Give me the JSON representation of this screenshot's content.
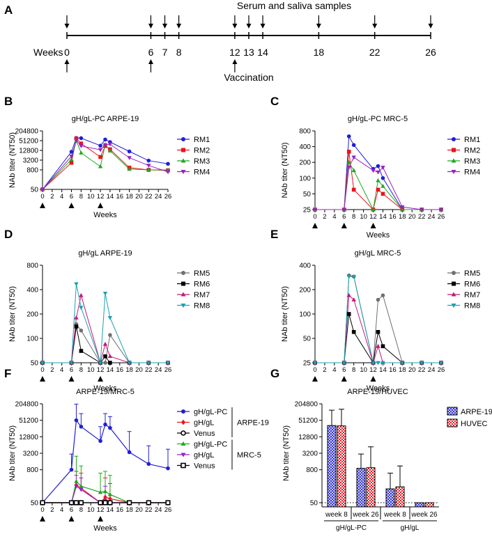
{
  "timeline": {
    "letter": "A",
    "top_label": "Serum and saliva samples",
    "weeks_label": "Weeks",
    "bottom_label": "Vaccination",
    "weeks": [
      0,
      6,
      7,
      8,
      12,
      13,
      14,
      18,
      22,
      26
    ],
    "sample_weeks": [
      0,
      6,
      7,
      8,
      12,
      13,
      14,
      18,
      22,
      26
    ],
    "vaccination_weeks": [
      0,
      6,
      12
    ]
  },
  "chart_data": [
    {
      "letter": "B",
      "type": "line",
      "title": "gH/gL-PC ARPE-19",
      "xlabel": "Weeks",
      "ylabel": "NAb titer (NT50)",
      "yscale": "log",
      "xlim": [
        0,
        26
      ],
      "xticks": [
        "0",
        "2",
        "4",
        "6",
        "8",
        "10",
        "12",
        "14",
        "16",
        "18",
        "20",
        "22",
        "24",
        "26"
      ],
      "ylim": [
        50,
        204800
      ],
      "yticks": [
        50,
        800,
        3200,
        12800,
        51200,
        204800
      ],
      "yticklabels": [
        "50",
        "800",
        "3200",
        "12800",
        "51200",
        "204800"
      ],
      "baseline": 50,
      "vaccination_weeks": [
        0,
        6,
        12
      ],
      "x": [
        0,
        6,
        7,
        8,
        12,
        13,
        14,
        18,
        22,
        26
      ],
      "series": [
        {
          "name": "RM1",
          "color": "#1f1fd6",
          "marker": "circle",
          "values": [
            50,
            10500,
            75000,
            73000,
            25000,
            60000,
            42000,
            11000,
            3000,
            1900
          ]
        },
        {
          "name": "RM2",
          "color": "#e8141e",
          "marker": "square",
          "values": [
            50,
            2200,
            70000,
            34000,
            5000,
            24000,
            15000,
            1100,
            800,
            750
          ]
        },
        {
          "name": "RM3",
          "color": "#1fa81f",
          "marker": "triangle",
          "values": [
            50,
            3500,
            50000,
            9000,
            1300,
            29000,
            12000,
            900,
            800,
            800
          ]
        },
        {
          "name": "RM4",
          "color": "#9b1fc6",
          "marker": "tri-down",
          "values": [
            50,
            5500,
            52000,
            24000,
            14000,
            28000,
            31000,
            4500,
            1500,
            600
          ]
        }
      ]
    },
    {
      "letter": "C",
      "type": "line",
      "title": "gH/gL-PC MRC-5",
      "xlabel": "Weeks",
      "ylabel": "NAb titer (NT50)",
      "yscale": "log",
      "xlim": [
        0,
        26
      ],
      "xticks": [
        "0",
        "2",
        "4",
        "6",
        "8",
        "10",
        "12",
        "14",
        "16",
        "18",
        "20",
        "22",
        "24",
        "26"
      ],
      "ylim": [
        25,
        800
      ],
      "yticks": [
        25,
        50,
        100,
        200,
        400,
        800
      ],
      "yticklabels": [
        "25",
        "50",
        "100",
        "200",
        "400",
        "800"
      ],
      "baseline": 25,
      "vaccination_weeks": [
        0,
        6,
        12
      ],
      "x": [
        0,
        6,
        7,
        8,
        12,
        13,
        14,
        18,
        22,
        26
      ],
      "series": [
        {
          "name": "RM1",
          "color": "#1f1fd6",
          "marker": "circle",
          "values": [
            25,
            25,
            630,
            430,
            150,
            170,
            100,
            25,
            25,
            25
          ]
        },
        {
          "name": "RM2",
          "color": "#e8141e",
          "marker": "square",
          "values": [
            25,
            25,
            320,
            60,
            25,
            60,
            50,
            25,
            25,
            25
          ]
        },
        {
          "name": "RM3",
          "color": "#1fa81f",
          "marker": "triangle",
          "values": [
            25,
            25,
            200,
            140,
            25,
            90,
            70,
            25,
            25,
            25
          ]
        },
        {
          "name": "RM4",
          "color": "#9b1fc6",
          "marker": "tri-down",
          "values": [
            25,
            25,
            160,
            250,
            140,
            130,
            160,
            28,
            25,
            25
          ]
        }
      ]
    },
    {
      "letter": "D",
      "type": "line",
      "title": "gH/gL ARPE-19",
      "xlabel": "Weeks",
      "ylabel": "NAb titer (NT50)",
      "yscale": "log",
      "xlim": [
        0,
        26
      ],
      "xticks": [
        "0",
        "2",
        "4",
        "6",
        "8",
        "10",
        "12",
        "14",
        "16",
        "18",
        "20",
        "22",
        "24",
        "26"
      ],
      "ylim": [
        50,
        800
      ],
      "yticks": [
        50,
        100,
        200,
        400,
        800
      ],
      "yticklabels": [
        "50",
        "100",
        "200",
        "400",
        "800"
      ],
      "baseline": 50,
      "vaccination_weeks": [
        0,
        6,
        12
      ],
      "x": [
        0,
        6,
        7,
        8,
        12,
        13,
        14,
        18,
        22,
        26
      ],
      "series": [
        {
          "name": "RM5",
          "color": "#707070",
          "marker": "circle",
          "values": [
            50,
            50,
            150,
            125,
            50,
            50,
            110,
            50,
            50,
            50
          ]
        },
        {
          "name": "RM6",
          "color": "#000000",
          "marker": "square",
          "values": [
            50,
            50,
            140,
            70,
            50,
            60,
            50,
            50,
            50,
            50
          ]
        },
        {
          "name": "RM7",
          "color": "#c2187a",
          "marker": "triangle",
          "values": [
            50,
            50,
            180,
            340,
            50,
            85,
            60,
            50,
            50,
            50
          ]
        },
        {
          "name": "RM8",
          "color": "#1aa0b0",
          "marker": "tri-down",
          "values": [
            50,
            50,
            470,
            240,
            50,
            360,
            180,
            50,
            50,
            50
          ]
        }
      ]
    },
    {
      "letter": "E",
      "type": "line",
      "title": "gH/gL MRC-5",
      "xlabel": "Weeks",
      "ylabel": "NAb titer (NT50)",
      "yscale": "log",
      "xlim": [
        0,
        26
      ],
      "xticks": [
        "0",
        "2",
        "4",
        "6",
        "8",
        "10",
        "12",
        "14",
        "16",
        "18",
        "20",
        "22",
        "24",
        "26"
      ],
      "ylim": [
        25,
        400
      ],
      "yticks": [
        25,
        50,
        100,
        200,
        400
      ],
      "yticklabels": [
        "25",
        "50",
        "100",
        "200",
        "400"
      ],
      "baseline": 25,
      "vaccination_weeks": [
        0,
        6,
        12
      ],
      "x": [
        0,
        6,
        7,
        8,
        12,
        13,
        14,
        18,
        22,
        26
      ],
      "series": [
        {
          "name": "RM5",
          "color": "#707070",
          "marker": "circle",
          "values": [
            25,
            25,
            300,
            290,
            25,
            150,
            170,
            25,
            25,
            25
          ]
        },
        {
          "name": "RM6",
          "color": "#000000",
          "marker": "square",
          "values": [
            25,
            25,
            100,
            60,
            25,
            60,
            40,
            25,
            25,
            25
          ]
        },
        {
          "name": "RM7",
          "color": "#c2187a",
          "marker": "triangle",
          "values": [
            25,
            25,
            170,
            150,
            25,
            40,
            25,
            25,
            25,
            25
          ]
        },
        {
          "name": "RM8",
          "color": "#1aa0b0",
          "marker": "tri-down",
          "values": [
            25,
            25,
            290,
            290,
            25,
            25,
            25,
            25,
            25,
            25
          ]
        }
      ]
    },
    {
      "letter": "F",
      "type": "line",
      "title": "ARPE-19/MRC-5",
      "xlabel": "Weeks",
      "ylabel": "NAb titer (NT50)",
      "yscale": "log",
      "xlim": [
        0,
        26
      ],
      "xticks": [
        "0",
        "2",
        "4",
        "6",
        "8",
        "10",
        "12",
        "14",
        "16",
        "18",
        "20",
        "22",
        "24",
        "26"
      ],
      "ylim": [
        50,
        204800
      ],
      "yticks": [
        50,
        800,
        3200,
        12800,
        51200,
        204800
      ],
      "yticklabels": [
        "50",
        "800",
        "3200",
        "12800",
        "51200",
        "204800"
      ],
      "baseline": 50,
      "vaccination_weeks": [
        0,
        6,
        12
      ],
      "x": [
        0,
        6,
        7,
        8,
        12,
        13,
        14,
        18,
        22,
        26
      ],
      "group_labels": [
        "ARPE-19",
        "MRC-5"
      ],
      "series": [
        {
          "name": "gH/gL-PC",
          "group": 0,
          "color": "#1f1fd6",
          "marker": "circle",
          "open": false,
          "values": [
            50,
            800,
            51200,
            30000,
            9000,
            36000,
            27000,
            3500,
            1300,
            900
          ],
          "errors": [
            null,
            3000,
            200000,
            90000,
            30000,
            90000,
            70000,
            20000,
            6000,
            4500
          ]
        },
        {
          "name": "gH/gL",
          "group": 0,
          "color": "#e8141e",
          "marker": "diamond",
          "open": false,
          "values": [
            50,
            50,
            220,
            170,
            50,
            80,
            70,
            50,
            50,
            50
          ],
          "errors": [
            null,
            null,
            700,
            600,
            null,
            400,
            250,
            null,
            null,
            null
          ]
        },
        {
          "name": "Venus",
          "group": 0,
          "color": "#000000",
          "marker": "circle",
          "open": true,
          "values": [
            50,
            50,
            50,
            50,
            50,
            50,
            50,
            50,
            50,
            50
          ],
          "errors": [
            null,
            null,
            null,
            null,
            null,
            null,
            null,
            null,
            null,
            null
          ]
        },
        {
          "name": "gH/gL-PC",
          "group": 1,
          "color": "#1fa81f",
          "marker": "triangle",
          "open": false,
          "values": [
            50,
            50,
            300,
            200,
            120,
            130,
            100,
            50,
            50,
            50
          ],
          "errors": [
            null,
            null,
            2500,
            1100,
            600,
            700,
            500,
            null,
            null,
            null
          ]
        },
        {
          "name": "gH/gL",
          "group": 1,
          "color": "#9b1fc6",
          "marker": "tri-down",
          "open": false,
          "values": [
            50,
            50,
            200,
            150,
            50,
            60,
            50,
            50,
            50,
            50
          ],
          "errors": [
            null,
            null,
            500,
            400,
            null,
            200,
            null,
            null,
            null,
            null
          ]
        },
        {
          "name": "Venus",
          "group": 1,
          "color": "#000000",
          "marker": "square",
          "open": true,
          "values": [
            50,
            50,
            50,
            50,
            50,
            50,
            50,
            50,
            50,
            50
          ],
          "errors": [
            null,
            null,
            null,
            null,
            null,
            null,
            null,
            null,
            null,
            null
          ]
        }
      ]
    },
    {
      "letter": "G",
      "type": "bar",
      "title": "ARPE-19/HUVEC",
      "ylabel": "NAb titer (NT50)",
      "yscale": "log",
      "ylim": [
        50,
        204800
      ],
      "yticks": [
        50,
        800,
        3200,
        12800,
        51200,
        204800
      ],
      "yticklabels": [
        "50",
        "800",
        "3200",
        "12800",
        "51200",
        "204800"
      ],
      "baseline": 50,
      "categories": [
        "week 8",
        "week 26",
        "week 8",
        "week 26"
      ],
      "groups": [
        {
          "label": "gH/gL-PC",
          "span": [
            0,
            1
          ]
        },
        {
          "label": "gH/gL",
          "span": [
            2,
            3
          ]
        }
      ],
      "series": [
        {
          "name": "ARPE-19",
          "color": "#3b3bcf",
          "values": [
            33000,
            900,
            160,
            50
          ],
          "errors": [
            120000,
            3000,
            600,
            null
          ]
        },
        {
          "name": "HUVEC",
          "color": "#e8141e",
          "values": [
            32000,
            950,
            190,
            50
          ],
          "errors": [
            130000,
            5500,
            1100,
            null
          ]
        }
      ]
    }
  ]
}
